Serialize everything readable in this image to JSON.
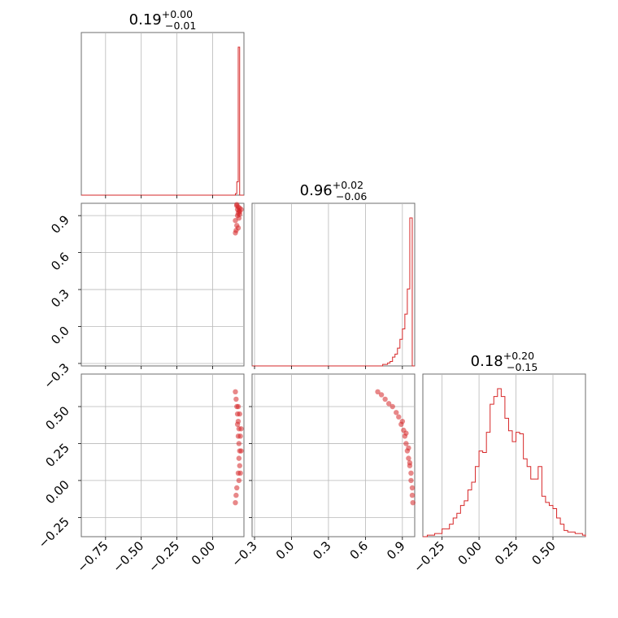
{
  "chart_data": {
    "type": "corner",
    "color": "#d62728",
    "grid": true,
    "parameters": [
      {
        "median": "0.19",
        "plus": "+0.00",
        "minus": "−0.01",
        "range": [
          -0.92,
          0.22
        ]
      },
      {
        "median": "0.96",
        "plus": "+0.02",
        "minus": "−0.06",
        "range": [
          -0.32,
          1.0
        ]
      },
      {
        "median": "0.18",
        "plus": "+0.20",
        "minus": "−0.15",
        "range": [
          -0.38,
          0.72
        ]
      }
    ],
    "tick_labels": {
      "param1": [
        "−0.75",
        "−0.50",
        "−0.25",
        "0.00"
      ],
      "param2": [
        "−0.3",
        "0.0",
        "0.3",
        "0.6",
        "0.9"
      ],
      "param3": [
        "−0.25",
        "0.00",
        "0.25",
        "0.50"
      ]
    },
    "tick_values": {
      "param1": [
        -0.75,
        -0.5,
        -0.25,
        0.0
      ],
      "param2": [
        -0.3,
        0.0,
        0.3,
        0.6,
        0.9
      ],
      "param3": [
        -0.25,
        0.0,
        0.25,
        0.5
      ]
    },
    "histograms": [
      {
        "param": 1,
        "bin_edges": [
          0.1,
          0.11,
          0.12,
          0.13,
          0.14,
          0.15,
          0.16,
          0.17,
          0.18,
          0.19,
          0.2
        ],
        "counts": [
          0,
          0,
          0,
          0,
          0,
          0,
          0.01,
          0.09,
          1.0,
          0.0
        ]
      },
      {
        "param": 2,
        "bin_edges": [
          0.72,
          0.74,
          0.76,
          0.78,
          0.8,
          0.82,
          0.84,
          0.86,
          0.88,
          0.9,
          0.92,
          0.94,
          0.96,
          0.98,
          1.0
        ],
        "counts": [
          0.0,
          0.01,
          0.01,
          0.02,
          0.03,
          0.06,
          0.08,
          0.12,
          0.18,
          0.25,
          0.35,
          0.52,
          1.0,
          0.0
        ]
      },
      {
        "param": 3,
        "bin_edges": [
          -0.35,
          -0.3,
          -0.25,
          -0.2,
          -0.175,
          -0.15,
          -0.125,
          -0.1,
          -0.075,
          -0.05,
          -0.025,
          0.0,
          0.025,
          0.05,
          0.075,
          0.1,
          0.125,
          0.15,
          0.175,
          0.2,
          0.225,
          0.25,
          0.275,
          0.3,
          0.325,
          0.35,
          0.375,
          0.4,
          0.425,
          0.45,
          0.475,
          0.5,
          0.525,
          0.55,
          0.575,
          0.6,
          0.65,
          0.7,
          0.72
        ],
        "counts": [
          0.01,
          0.02,
          0.05,
          0.08,
          0.12,
          0.15,
          0.2,
          0.23,
          0.3,
          0.35,
          0.45,
          0.55,
          0.54,
          0.67,
          0.85,
          0.9,
          0.95,
          0.9,
          0.76,
          0.68,
          0.61,
          0.67,
          0.66,
          0.5,
          0.45,
          0.37,
          0.37,
          0.45,
          0.26,
          0.22,
          0.2,
          0.18,
          0.12,
          0.08,
          0.04,
          0.03,
          0.02,
          0.01
        ]
      }
    ],
    "scatter": [
      {
        "x_param": 1,
        "y_param": 2,
        "points": [
          [
            0.17,
            0.98
          ],
          [
            0.18,
            0.97
          ],
          [
            0.175,
            0.95
          ],
          [
            0.185,
            0.94
          ],
          [
            0.19,
            0.93
          ],
          [
            0.18,
            0.92
          ],
          [
            0.17,
            0.99
          ],
          [
            0.19,
            0.96
          ],
          [
            0.2,
            0.95
          ],
          [
            0.175,
            0.9
          ],
          [
            0.185,
            0.88
          ],
          [
            0.16,
            0.86
          ],
          [
            0.17,
            0.82
          ],
          [
            0.165,
            0.78
          ],
          [
            0.16,
            0.76
          ],
          [
            0.18,
            0.8
          ],
          [
            0.19,
            0.91
          ]
        ]
      },
      {
        "x_param": 1,
        "y_param": 3,
        "points": [
          [
            0.16,
            0.6
          ],
          [
            0.165,
            0.55
          ],
          [
            0.17,
            0.5
          ],
          [
            0.175,
            0.45
          ],
          [
            0.18,
            0.4
          ],
          [
            0.185,
            0.35
          ],
          [
            0.18,
            0.3
          ],
          [
            0.185,
            0.25
          ],
          [
            0.19,
            0.2
          ],
          [
            0.185,
            0.15
          ],
          [
            0.19,
            0.1
          ],
          [
            0.18,
            0.05
          ],
          [
            0.185,
            0.0
          ],
          [
            0.17,
            -0.05
          ],
          [
            0.165,
            -0.1
          ],
          [
            0.16,
            -0.15
          ],
          [
            0.19,
            0.45
          ],
          [
            0.2,
            0.35
          ],
          [
            0.2,
            0.2
          ],
          [
            0.195,
            0.3
          ],
          [
            0.195,
            0.05
          ],
          [
            0.18,
            0.5
          ],
          [
            0.175,
            0.38
          ]
        ]
      },
      {
        "x_param": 2,
        "y_param": 3,
        "points": [
          [
            0.7,
            0.6
          ],
          [
            0.73,
            0.58
          ],
          [
            0.76,
            0.55
          ],
          [
            0.79,
            0.52
          ],
          [
            0.82,
            0.5
          ],
          [
            0.85,
            0.46
          ],
          [
            0.87,
            0.43
          ],
          [
            0.89,
            0.38
          ],
          [
            0.91,
            0.34
          ],
          [
            0.92,
            0.3
          ],
          [
            0.93,
            0.25
          ],
          [
            0.94,
            0.2
          ],
          [
            0.95,
            0.15
          ],
          [
            0.96,
            0.1
          ],
          [
            0.97,
            0.05
          ],
          [
            0.97,
            0.0
          ],
          [
            0.98,
            -0.05
          ],
          [
            0.98,
            -0.1
          ],
          [
            0.985,
            -0.15
          ],
          [
            0.9,
            0.4
          ],
          [
            0.93,
            0.32
          ],
          [
            0.95,
            0.22
          ],
          [
            0.96,
            0.12
          ]
        ]
      }
    ]
  }
}
